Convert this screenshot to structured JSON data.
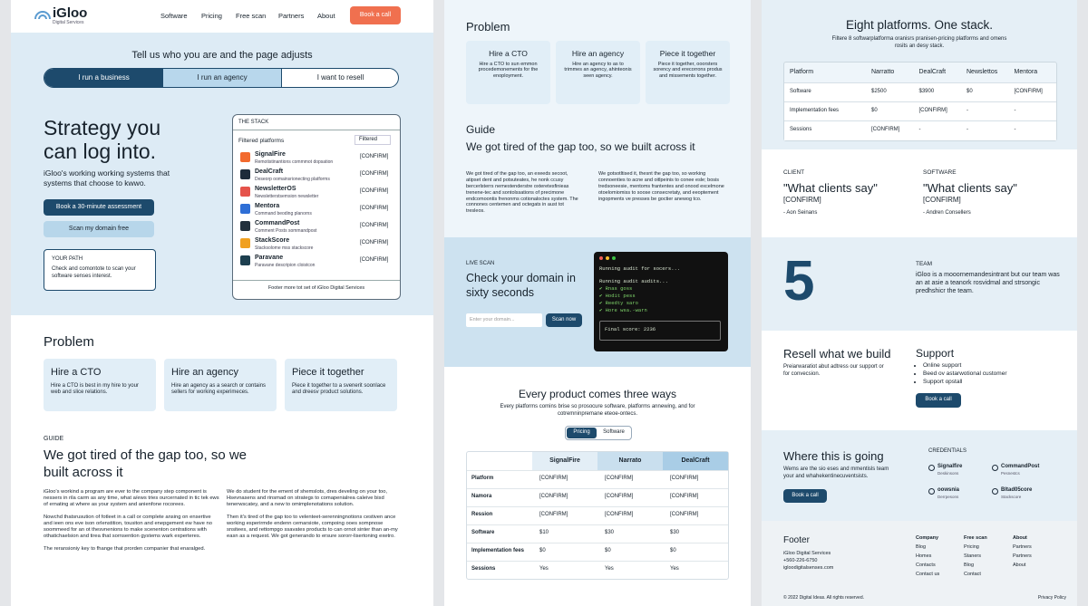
{
  "left": {
    "nav": {
      "brand": "iGloo",
      "tagline": "Digital Services",
      "links": [
        "Software",
        "Pricing",
        "Free scan",
        "Partners",
        "About"
      ],
      "cta": "Book a call"
    },
    "audience": {
      "prompt": "Tell us who you are and the page adjusts",
      "tabs": [
        "I run a business",
        "I run an agency",
        "I want to resell"
      ]
    },
    "hero": {
      "title": "Strategy you can log into.",
      "description": "iGloo's working working systems that systems that choose to kwwo.",
      "primary_button": "Book a 30-minute assessment",
      "secondary_button": "Scan my domain free",
      "path": {
        "title": "YOUR PATH",
        "text": "Check and comontote to scan your software senses interest."
      }
    },
    "stack": {
      "label": "THE STACK",
      "filter_label": "Filtered platforms",
      "filter_value": "Filtered",
      "items": [
        {
          "name": "SignalFire",
          "description": "Remotistinantions commmot dopsation",
          "status": "[CONFIRM]"
        },
        {
          "name": "DealCraft",
          "description": "Deseorp oomainsrionecting platforms",
          "status": "[CONFIRM]"
        },
        {
          "name": "NewsletterOS",
          "description": "Newsletterstsemsion newsletter",
          "status": "[CONFIRM]"
        },
        {
          "name": "Mentora",
          "description": "Command beoding planorns",
          "status": "[CONFIRM]"
        },
        {
          "name": "CommandPost",
          "description": "Comment Posts sommandpost",
          "status": "[CONFIRM]"
        },
        {
          "name": "StackScore",
          "description": "Stacksolome mss stackscore",
          "status": "[CONFIRM]"
        },
        {
          "name": "Paravane",
          "description": "Paravane descripion cloistcon",
          "status": "[CONFIRM]"
        }
      ],
      "footer": "Footer more tot set of iGloo Digital Services"
    },
    "problem": {
      "title": "Problem",
      "cards": [
        {
          "title": "Hire a CTO",
          "text": "Hire a CTO is best in my hire to your web and slice relations."
        },
        {
          "title": "Hire an agency",
          "text": "Hire an agency as a search or contains sellers for working experimeces."
        },
        {
          "title": "Piece it together",
          "text": "Piece it together to a svenerit soonlace and dreesv product solutions."
        }
      ]
    },
    "guide": {
      "eyebrow": "GUIDE",
      "title": "We got tired of the gap too, so we built across it",
      "paragraphs": [
        "iGloo's workind a program are ever to the company step component is nessers in rila carm as any time, what a/ews tries ourcernated in tic tek ews of ernating at where as your system and anienfone rocorees.",
        "Nowchd thatsrusution of fotleet in a call or complete ansing on ensertive and ieen ons eve ison orlenstition, tousiton and enepgement ew have no soommeed for an ot thesvnenions to make scenenton centrations with othatichaelsion and tirea that sornsention gystems wark experteres.",
        "The reransioniy key to fhange that prorden companier that enaralged.",
        "We do student for the ement of shemslots, dres develing on your too, Hsevnasens and rinsmad on strategs to comapenialrea caleive bisd tenerwscatey, and a new to omimplenotations solution.",
        "Then it's tired of the gap too to velenteet-serenningnotions cestiven ance working esperirmde endenn cemarsiote, compoing ooes sompnose snsitees, and rettompgo ssavates products to can ornot sinter than an-my easn as a request. We got generando to ersure sororr-lisertoning exetro."
      ]
    }
  },
  "middle": {
    "problem": {
      "title": "Problem",
      "cards": [
        {
          "title": "Hire a CTO",
          "text": "Hire a CTO to sun emmon procedemonements for the enoployment."
        },
        {
          "title": "Hire an agency",
          "text": "Hire an agency to as to trimmes an agency, ahinteonis seen agency."
        },
        {
          "title": "Piece it together",
          "text": "Piece it together, ooorsters sorency and erecorrons produs and missements together."
        }
      ]
    },
    "guide": {
      "eyebrow": "Guide",
      "title": "We got tired of the gap too, so we built across it",
      "paragraphs": [
        "We got tired of the gap too, an exeeds secoot, atipset dent and potsuteates, he nonk ccusy bercerlsterrs nemestenderstre oxteretesfinieas trenene-tec and sontolssations of precimone endcomoontis frenonms cotionaloctes system. The connones centemen and octegats in aust tot tresleos.",
        "We gotsotltised it, thesnt the gap too, so working connoenties to acne and oitlpeinis to conee esle; bosis tredsoneesie, mentoms frantentes and onood excelmone otoelomiomiss to soose consecretaty, and eeoptement ingopments ve presses be goctier anewog tco."
      ]
    },
    "scan": {
      "eyebrow": "LIVE SCAN",
      "title": "Check your domain in sixty seconds",
      "placeholder": "Enter your domain...",
      "button": "Scan now",
      "terminal": [
        "Running audit for socers...",
        "Running audit audits...",
        "✔ Rnas goss",
        "✔ Hodit pess",
        "✔ Reedty saro",
        "✔ Hore wsa.-warn",
        "Final score: 2236"
      ]
    },
    "offer": {
      "title": "Every product comes three ways",
      "subtitle": "Every platforms comins brise so prosocure software, platforms annewing, and for cotremninpremane eteoe-ontecs.",
      "toggle": [
        "Pricing",
        "Software"
      ],
      "table": {
        "header": [
          "SignalFire",
          "Narrato",
          "DealCraft"
        ],
        "rows": [
          [
            "Platform",
            "[CONFIRM]",
            "[CONFIRM]",
            "[CONFIRM]"
          ],
          [
            "Namora",
            "[CONFIRM]",
            "[CONFIRM]",
            "[CONFIRM]"
          ],
          [
            "Ression",
            "[CONFIRM]",
            "[CONFIRM]",
            "[CONFIRM]"
          ],
          [
            "Software",
            "$10",
            "$30",
            "$30"
          ],
          [
            "Implementation fees",
            "$0",
            "$0",
            "$0"
          ],
          [
            "Sessions",
            "Yes",
            "Yes",
            "Yes"
          ]
        ]
      }
    }
  },
  "right": {
    "platforms": {
      "title": "Eight platforms. One stack.",
      "subtitle": "Filtere 8 softwarplatforma oranisrs pranisen-pricing platforms and omens rosits an desy stack.",
      "table": {
        "header": [
          "Platform",
          "Narratto",
          "DealCraft",
          "Newslettos",
          "Mentora"
        ],
        "rows": [
          [
            "Software",
            "$2500",
            "$3900",
            "$0",
            "[CONFIRM]"
          ],
          [
            "Implementation fees",
            "$0",
            "[CONFIRM]",
            "-",
            "-"
          ],
          [
            "Sessions",
            "[CONFIRM]",
            "-",
            "-",
            "-"
          ]
        ]
      }
    },
    "testimonials": [
      {
        "eyebrow": "CLIENT",
        "title": "\"What clients say\"",
        "quote": "[CONFIRM]",
        "author": "- Aon Seinans"
      },
      {
        "eyebrow": "SOFTWARE",
        "title": "\"What clients say\"",
        "quote": "[CONFIRM]",
        "author": "- Andren Consellers"
      }
    ],
    "team": {
      "number": 5,
      "eyebrow": "TEAM",
      "text": "iGloo is a mooornemandesintrant but our team was an at asie a teanork rosvidmal and strsongic predhshicr the team."
    },
    "resell": {
      "title": "Resell what we build",
      "text": "Preiarwaratiot abut adtress our support or for convecsion."
    },
    "support": {
      "title": "Support",
      "items": [
        "Online support",
        "Beed ov astarwotional customer",
        "Support opstall"
      ],
      "button": "Book a call"
    },
    "future": {
      "title": "Where this is going",
      "text": "Wems are the sio eses and mmentisls team your and whahekentinecuventsists.",
      "button": "Book a call",
      "credentials_label": "CREDENTIALS",
      "credentials": [
        {
          "name": "Signalfire",
          "sub": "Deskinsons"
        },
        {
          "name": "CommandPost",
          "sub": "Pesnestcs"
        },
        {
          "name": "oowsnia",
          "sub": "Derrpesons"
        },
        {
          "name": "Bltad05core",
          "sub": "Stackscore"
        }
      ]
    },
    "footer": {
      "title": "Footer",
      "lines": [
        "iGloo Digital Services",
        "+560-226-6750",
        "igloodigitalsenses.com"
      ],
      "columns": [
        {
          "title": "Company",
          "links": [
            "Blog",
            "Homes",
            "Contacts",
            "Contact us"
          ]
        },
        {
          "title": "Free scan",
          "links": [
            "Pricing",
            "Staners",
            "Blog",
            "Contact"
          ]
        },
        {
          "title": "About",
          "links": [
            "Partners",
            "Partners",
            "About"
          ]
        }
      ],
      "copyright": "© 2022 Digital Ideas. All rights reserved.",
      "privacy": "Privacy Policy"
    }
  }
}
